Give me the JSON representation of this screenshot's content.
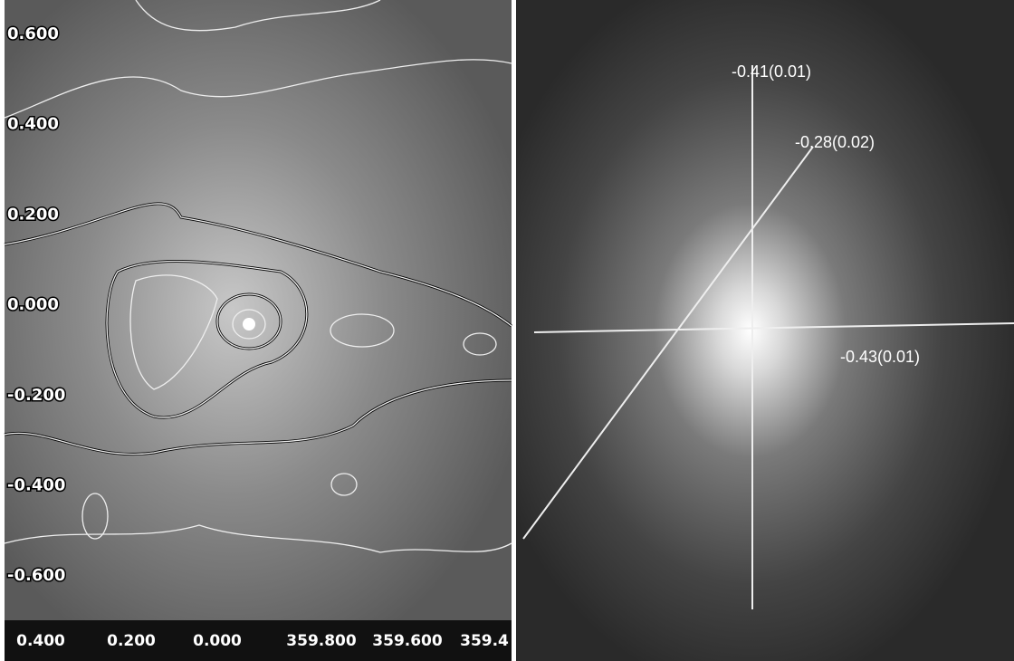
{
  "left_panel": {
    "y_axis_labels": [
      "0.600",
      "0.400",
      "0.200",
      "0.000",
      "-0.200",
      "-0.400",
      "-0.600"
    ],
    "x_axis_labels": [
      "0.400",
      "0.200",
      "0.000",
      "359.800",
      "359.600",
      "359.4"
    ]
  },
  "right_panel": {
    "annotations": [
      "-0.41(0.01)",
      "-0.28(0.02)",
      "-0.43(0.01)"
    ]
  }
}
